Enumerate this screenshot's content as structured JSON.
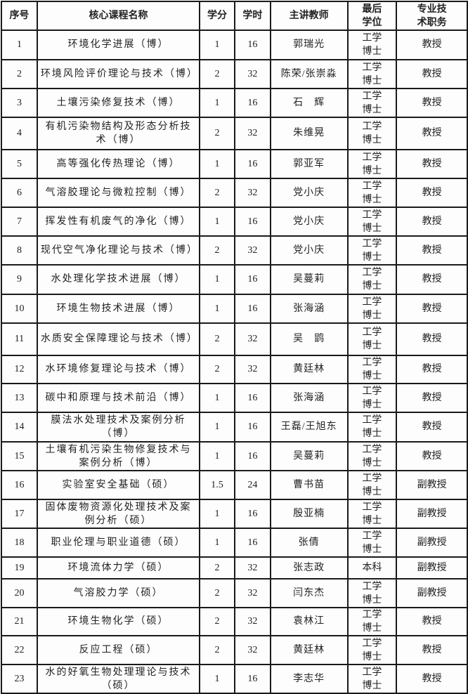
{
  "table": {
    "headers": [
      "序号",
      "核心课程名称",
      "学分",
      "学时",
      "主讲教师",
      "最后\n学位",
      "专业技\n术职务"
    ],
    "rows": [
      [
        "1",
        "环境化学进展（博）",
        "1",
        "16",
        "郭瑞光",
        "工学\n博士",
        "教授"
      ],
      [
        "2",
        "环境风险评价理论与技术（博）",
        "2",
        "32",
        "陈荣/张崇淼",
        "工学\n博士",
        "教授"
      ],
      [
        "3",
        "土壤污染修复技术（博）",
        "1",
        "16",
        "石　辉",
        "工学\n博士",
        "教授"
      ],
      [
        "4",
        "有机污染物结构及形态分析技术（博）",
        "2",
        "32",
        "朱维晃",
        "工学\n博士",
        "教授"
      ],
      [
        "5",
        "高等强化传热理论（博）",
        "1",
        "16",
        "郭亚军",
        "工学\n博士",
        "教授"
      ],
      [
        "6",
        "气溶胶理论与微粒控制（博）",
        "2",
        "32",
        "党小庆",
        "工学\n博士",
        "教授"
      ],
      [
        "7",
        "挥发性有机废气的净化（博）",
        "1",
        "16",
        "党小庆",
        "工学\n博士",
        "教授"
      ],
      [
        "8",
        "现代空气净化理论与技术（博）",
        "2",
        "32",
        "党小庆",
        "工学\n博士",
        "教授"
      ],
      [
        "9",
        "水处理化学技术进展（博）",
        "1",
        "16",
        "吴蔓莉",
        "工学\n博士",
        "教授"
      ],
      [
        "10",
        "环境生物技术进展（博）",
        "1",
        "16",
        "张海涵",
        "工学\n博士",
        "教授"
      ],
      [
        "11",
        "水质安全保障理论与技术（博）",
        "2",
        "32",
        "吴　鹍",
        "工学\n博士",
        "教授"
      ],
      [
        "12",
        "水环境修复理论与技术（博）",
        "2",
        "32",
        "黄廷林",
        "工学\n博士",
        "教授"
      ],
      [
        "13",
        "碳中和原理与技术前沿（博）",
        "1",
        "16",
        "张海涵",
        "工学\n博士",
        "教授"
      ],
      [
        "14",
        "膜法水处理技术及案例分析（博）",
        "1",
        "16",
        "王磊/王旭东",
        "工学\n博士",
        "教授"
      ],
      [
        "15",
        "土壤有机污染生物修复技术与案例分析（博）",
        "1",
        "16",
        "吴蔓莉",
        "工学\n博士",
        "教授"
      ],
      [
        "16",
        "实验室安全基础（硕）",
        "1.5",
        "24",
        "曹书苗",
        "工学\n博士",
        "副教授"
      ],
      [
        "17",
        "固体废物资源化处理技术及案例分析（硕）",
        "1",
        "16",
        "殷亚楠",
        "工学\n博士",
        "副教授"
      ],
      [
        "18",
        "职业伦理与职业道德（硕）",
        "1",
        "16",
        "张倩",
        "工学\n博士",
        "副教授"
      ],
      [
        "19",
        "环境流体力学（硕）",
        "2",
        "32",
        "张志政",
        "本科",
        "副教授"
      ],
      [
        "20",
        "气溶胶力学（硕）",
        "2",
        "32",
        "闫东杰",
        "工学\n博士",
        "副教授"
      ],
      [
        "21",
        "环境生物化学（硕）",
        "2",
        "32",
        "袁林江",
        "工学\n博士",
        "教授"
      ],
      [
        "22",
        "反应工程（硕）",
        "2",
        "32",
        "黄廷林",
        "工学\n博士",
        "教授"
      ],
      [
        "23",
        "水的好氧生物处理理论与技术（硕）",
        "1",
        "16",
        "李志华",
        "工学\n博士",
        "教授"
      ]
    ]
  }
}
